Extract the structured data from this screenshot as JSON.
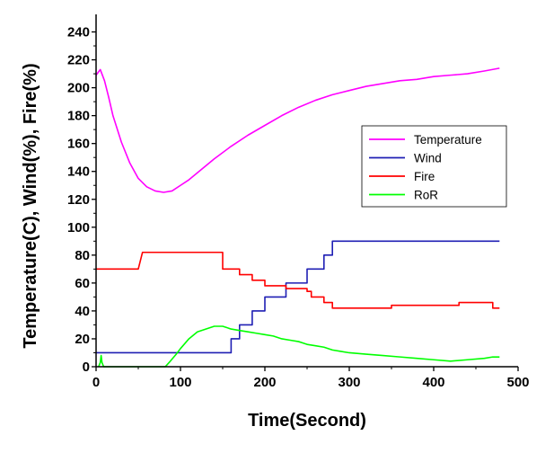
{
  "chart_data": {
    "type": "line",
    "xlabel": "Time(Second)",
    "ylabel": "Temperature(C), Wind(%), Fire(%)",
    "xlim": [
      0,
      500
    ],
    "ylim": [
      0,
      250
    ],
    "xticks": [
      0,
      100,
      200,
      300,
      400,
      500
    ],
    "yticks": [
      0,
      20,
      40,
      60,
      80,
      100,
      120,
      140,
      160,
      180,
      200,
      220,
      240
    ],
    "grid": false,
    "legend_position": "right-center",
    "series": [
      {
        "name": "Temperature",
        "color": "#ff00ff",
        "step": false,
        "points": [
          [
            0,
            209
          ],
          [
            5,
            213
          ],
          [
            10,
            205
          ],
          [
            15,
            193
          ],
          [
            20,
            180
          ],
          [
            30,
            161
          ],
          [
            40,
            146
          ],
          [
            50,
            135
          ],
          [
            60,
            129
          ],
          [
            70,
            126
          ],
          [
            80,
            125
          ],
          [
            90,
            126
          ],
          [
            100,
            130
          ],
          [
            110,
            134
          ],
          [
            120,
            139
          ],
          [
            140,
            149
          ],
          [
            160,
            158
          ],
          [
            180,
            166
          ],
          [
            200,
            173
          ],
          [
            220,
            180
          ],
          [
            240,
            186
          ],
          [
            260,
            191
          ],
          [
            280,
            195
          ],
          [
            300,
            198
          ],
          [
            320,
            201
          ],
          [
            340,
            203
          ],
          [
            360,
            205
          ],
          [
            380,
            206
          ],
          [
            400,
            208
          ],
          [
            420,
            209
          ],
          [
            440,
            210
          ],
          [
            460,
            212
          ],
          [
            478,
            214
          ]
        ]
      },
      {
        "name": "Wind",
        "color": "#1f1fb4",
        "step": true,
        "points": [
          [
            0,
            10
          ],
          [
            160,
            10
          ],
          [
            160,
            20
          ],
          [
            170,
            20
          ],
          [
            170,
            30
          ],
          [
            185,
            30
          ],
          [
            185,
            40
          ],
          [
            200,
            40
          ],
          [
            200,
            50
          ],
          [
            225,
            50
          ],
          [
            225,
            60
          ],
          [
            250,
            60
          ],
          [
            250,
            70
          ],
          [
            270,
            70
          ],
          [
            270,
            80
          ],
          [
            280,
            80
          ],
          [
            280,
            90
          ],
          [
            478,
            90
          ]
        ]
      },
      {
        "name": "Fire",
        "color": "#ff0000",
        "step": true,
        "points": [
          [
            0,
            70
          ],
          [
            50,
            70
          ],
          [
            55,
            82
          ],
          [
            150,
            82
          ],
          [
            150,
            70
          ],
          [
            170,
            70
          ],
          [
            170,
            66
          ],
          [
            185,
            66
          ],
          [
            185,
            62
          ],
          [
            200,
            62
          ],
          [
            200,
            58
          ],
          [
            225,
            58
          ],
          [
            225,
            56
          ],
          [
            250,
            56
          ],
          [
            250,
            54
          ],
          [
            255,
            54
          ],
          [
            255,
            50
          ],
          [
            270,
            50
          ],
          [
            270,
            46
          ],
          [
            280,
            46
          ],
          [
            280,
            42
          ],
          [
            350,
            42
          ],
          [
            350,
            44
          ],
          [
            430,
            44
          ],
          [
            430,
            46
          ],
          [
            470,
            46
          ],
          [
            470,
            42
          ],
          [
            478,
            42
          ]
        ]
      },
      {
        "name": "RoR",
        "color": "#00ff00",
        "step": false,
        "points": [
          [
            3,
            0
          ],
          [
            5,
            3
          ],
          [
            6,
            8
          ],
          [
            7,
            3
          ],
          [
            9,
            0
          ],
          [
            82,
            0
          ],
          [
            88,
            4
          ],
          [
            95,
            9
          ],
          [
            100,
            13
          ],
          [
            110,
            20
          ],
          [
            120,
            25
          ],
          [
            130,
            27
          ],
          [
            140,
            29
          ],
          [
            150,
            29
          ],
          [
            155,
            28
          ],
          [
            160,
            27
          ],
          [
            170,
            26
          ],
          [
            180,
            25
          ],
          [
            190,
            24
          ],
          [
            200,
            23
          ],
          [
            210,
            22
          ],
          [
            220,
            20
          ],
          [
            230,
            19
          ],
          [
            240,
            18
          ],
          [
            250,
            16
          ],
          [
            260,
            15
          ],
          [
            270,
            14
          ],
          [
            280,
            12
          ],
          [
            290,
            11
          ],
          [
            300,
            10
          ],
          [
            320,
            9
          ],
          [
            340,
            8
          ],
          [
            360,
            7
          ],
          [
            380,
            6
          ],
          [
            400,
            5
          ],
          [
            420,
            4
          ],
          [
            440,
            5
          ],
          [
            460,
            6
          ],
          [
            470,
            7
          ],
          [
            478,
            7
          ]
        ]
      }
    ]
  }
}
